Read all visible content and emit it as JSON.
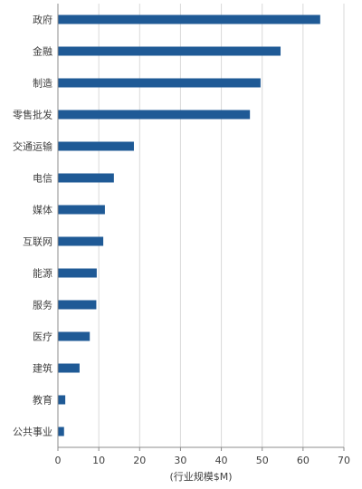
{
  "chart_data": {
    "type": "bar",
    "orientation": "horizontal",
    "categories": [
      "政府",
      "金融",
      "制造",
      "零售批发",
      "交通运输",
      "电信",
      "媒体",
      "互联网",
      "能源",
      "服务",
      "医疗",
      "建筑",
      "教育",
      "公共事业"
    ],
    "values": [
      64.2,
      54.5,
      49.6,
      47.0,
      18.6,
      13.7,
      11.5,
      11.1,
      9.5,
      9.4,
      7.8,
      5.3,
      1.8,
      1.5
    ],
    "xlabel": "(行业规模$M)",
    "xlim": [
      0,
      70
    ],
    "xticks": [
      0,
      10,
      20,
      30,
      40,
      50,
      60,
      70
    ],
    "grid": true,
    "legend": "none",
    "bar_color": "#1f5a96"
  }
}
